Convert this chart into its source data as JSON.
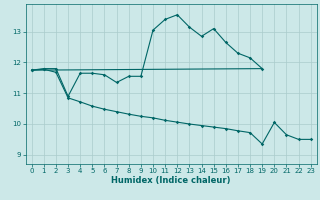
{
  "xlabel": "Humidex (Indice chaleur)",
  "bg_color": "#cce8e8",
  "grid_color": "#aacccc",
  "line_color": "#006666",
  "xlim": [
    -0.5,
    23.5
  ],
  "ylim": [
    8.7,
    13.9
  ],
  "yticks": [
    9,
    10,
    11,
    12,
    13
  ],
  "xticks": [
    0,
    1,
    2,
    3,
    4,
    5,
    6,
    7,
    8,
    9,
    10,
    11,
    12,
    13,
    14,
    15,
    16,
    17,
    18,
    19,
    20,
    21,
    22,
    23
  ],
  "line1_x": [
    0,
    1,
    2,
    3,
    4,
    5,
    6,
    7,
    8,
    9,
    10,
    11,
    12,
    13,
    14,
    15,
    16,
    17,
    18,
    19
  ],
  "line1_y": [
    11.75,
    11.8,
    11.8,
    10.9,
    11.65,
    11.65,
    11.6,
    11.35,
    11.55,
    11.55,
    13.05,
    13.4,
    13.55,
    13.15,
    12.85,
    13.1,
    12.65,
    12.3,
    12.15,
    11.8
  ],
  "line2_x": [
    0,
    19
  ],
  "line2_y": [
    11.75,
    11.8
  ],
  "line3_x": [
    0,
    1,
    2,
    3,
    4,
    5,
    6,
    7,
    8,
    9,
    10,
    11,
    12,
    13,
    14,
    15,
    16,
    17,
    18,
    19,
    20,
    21,
    22,
    23
  ],
  "line3_y": [
    11.75,
    11.78,
    11.68,
    10.85,
    10.72,
    10.58,
    10.48,
    10.4,
    10.32,
    10.25,
    10.2,
    10.12,
    10.06,
    10.0,
    9.95,
    9.9,
    9.85,
    9.78,
    9.72,
    9.35,
    10.05,
    9.65,
    9.5,
    9.5
  ]
}
